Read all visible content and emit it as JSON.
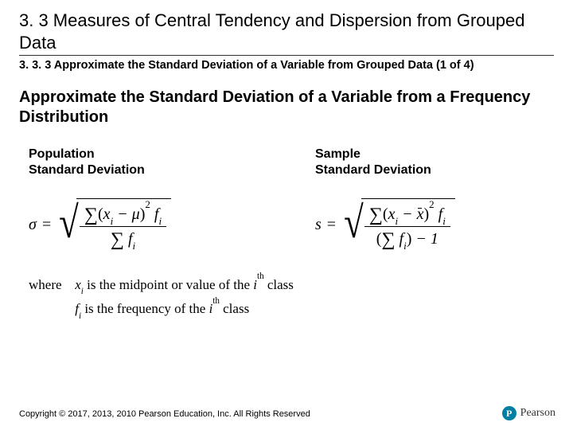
{
  "title": "3. 3 Measures of Central Tendency and Dispersion from Grouped Data",
  "subtitle": "3. 3. 3 Approximate the Standard Deviation of a Variable from Grouped Data (1 of 4)",
  "section_heading": "Approximate the Standard Deviation of a Variable from a Frequency Distribution",
  "col1": {
    "label_l1": "Population",
    "label_l2": "Standard Deviation"
  },
  "col2": {
    "label_l1": "Sample",
    "label_l2": "Standard Deviation"
  },
  "where": {
    "lead": "where",
    "line1_pre": "x",
    "line1_sub": "i",
    "line1_post": " is the midpoint or value of the ",
    "line1_ith": "i",
    "line1_th": "th",
    "line1_end": " class",
    "line2_pre": "f",
    "line2_sub": "i",
    "line2_post": " is the frequency of the ",
    "line2_ith": "i",
    "line2_th": "th",
    "line2_end": " class"
  },
  "footer": "Copyright © 2017, 2013, 2010 Pearson Education, Inc. All Rights Reserved",
  "brand": {
    "initial": "P",
    "name": "Pearson"
  },
  "colors": {
    "brand": "#007fa3",
    "text": "#000000",
    "bg": "#ffffff"
  }
}
